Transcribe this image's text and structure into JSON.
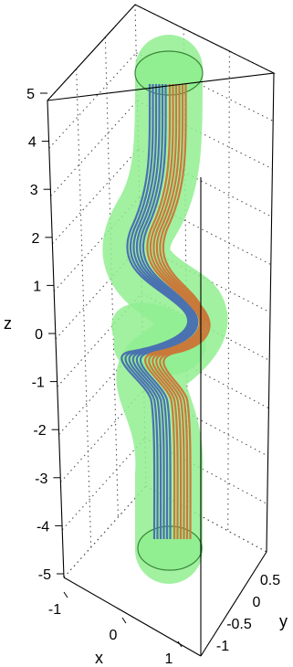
{
  "chart_data": {
    "type": "scatter",
    "plot_kind": "3d-knotted-tube-with-streamlines",
    "x_axis": {
      "label": "x",
      "ticks": [
        "-1",
        "0",
        "1"
      ],
      "range": [
        -1.3,
        1.3
      ]
    },
    "y_axis": {
      "label": "y",
      "ticks": [
        "0.5",
        "0",
        "-0.5",
        "-1"
      ],
      "range": [
        -1.3,
        1.0
      ]
    },
    "z_axis": {
      "label": "z",
      "ticks": [
        "5",
        "4",
        "3",
        "2",
        "1",
        "0",
        "-1",
        "-2",
        "-3",
        "-4",
        "-5"
      ],
      "range": [
        -5,
        5
      ]
    },
    "grid": "on",
    "series": [],
    "colors": {
      "tube": "#90ee90",
      "tube_edge": "#2f7a2f",
      "blue_lines": "#4a72b0",
      "orange_lines": "#c97a3a",
      "box": "#000000",
      "grid": "#444444"
    },
    "line_counts": {
      "blue": 6,
      "orange": 6
    }
  }
}
